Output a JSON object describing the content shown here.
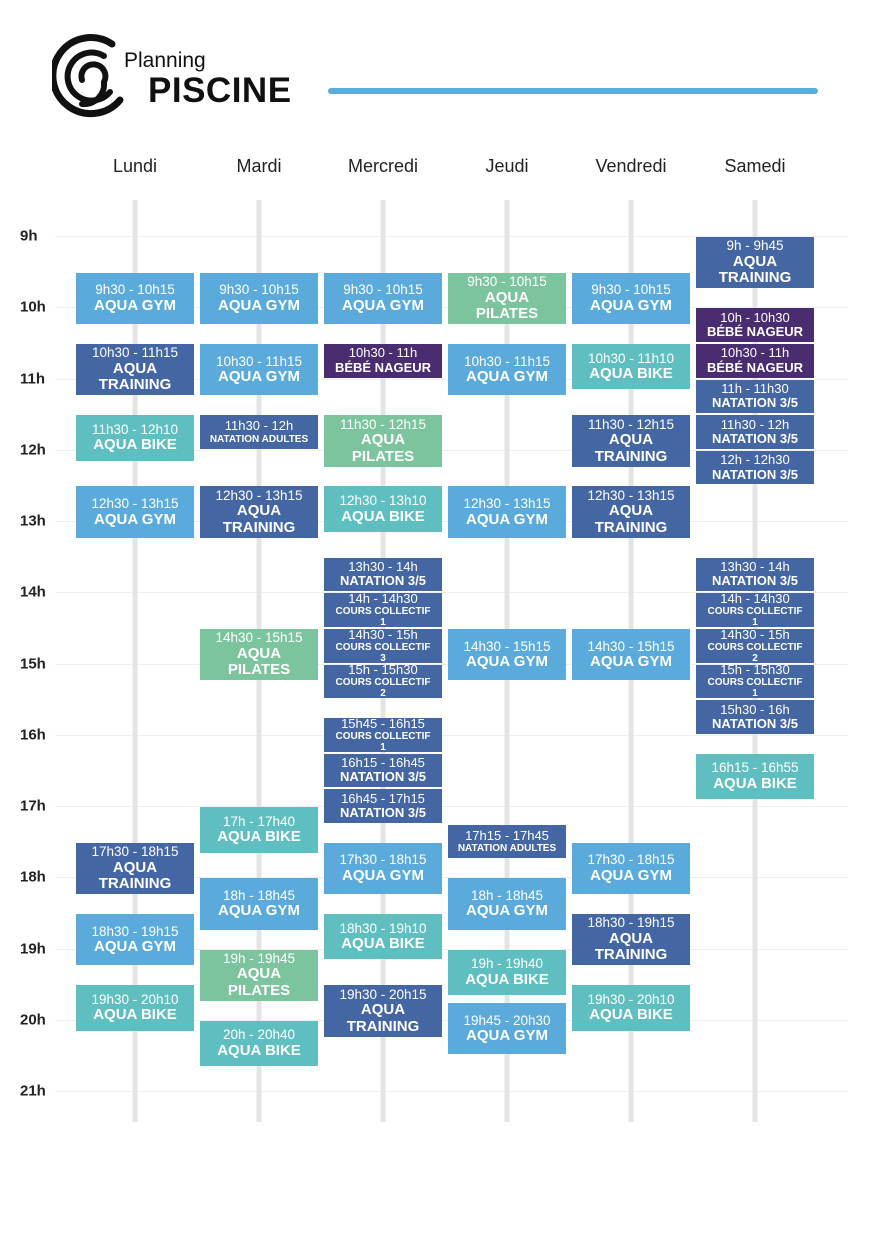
{
  "header": {
    "subtitle": "Planning",
    "title": "PISCINE"
  },
  "hours": [
    "9h",
    "10h",
    "11h",
    "12h",
    "13h",
    "14h",
    "15h",
    "16h",
    "17h",
    "18h",
    "19h",
    "20h",
    "21h"
  ],
  "days": [
    {
      "name": "Lundi",
      "events": [
        {
          "time": "9h30 - 10h15",
          "title": "AQUA GYM",
          "color": "#5aabdb"
        },
        {
          "time": "10h30 - 11h15",
          "title": "AQUA TRAINING",
          "color": "#4466a3"
        },
        {
          "time": "11h30 - 12h10",
          "title": "AQUA BIKE",
          "color": "#5fbfc0"
        },
        {
          "time": "12h30 - 13h15",
          "title": "AQUA GYM",
          "color": "#5aabdb"
        },
        {
          "time": "17h30 - 18h15",
          "title": "AQUA TRAINING",
          "color": "#4466a3"
        },
        {
          "time": "18h30 - 19h15",
          "title": "AQUA GYM",
          "color": "#5aabdb"
        },
        {
          "time": "19h30 - 20h10",
          "title": "AQUA BIKE",
          "color": "#5fbfc0"
        }
      ]
    },
    {
      "name": "Mardi",
      "events": [
        {
          "time": "9h30 - 10h15",
          "title": "AQUA GYM",
          "color": "#5aabdb"
        },
        {
          "time": "10h30 - 11h15",
          "title": "AQUA GYM",
          "color": "#5aabdb"
        },
        {
          "time": "11h30 - 12h",
          "title": "NATATION ADULTES",
          "color": "#4466a3"
        },
        {
          "time": "12h30 - 13h15",
          "title": "AQUA TRAINING",
          "color": "#4466a3"
        },
        {
          "time": "14h30 - 15h15",
          "title": "AQUA PILATES",
          "color": "#7cc49e"
        },
        {
          "time": "17h - 17h40",
          "title": "AQUA BIKE",
          "color": "#5fbfc0"
        },
        {
          "time": "18h - 18h45",
          "title": "AQUA GYM",
          "color": "#5aabdb"
        },
        {
          "time": "19h - 19h45",
          "title": "AQUA PILATES",
          "color": "#7cc49e"
        },
        {
          "time": "20h - 20h40",
          "title": "AQUA BIKE",
          "color": "#5fbfc0"
        }
      ]
    },
    {
      "name": "Mercredi",
      "events": [
        {
          "time": "9h30 - 10h15",
          "title": "AQUA GYM",
          "color": "#5aabdb"
        },
        {
          "time": "10h30 - 11h",
          "title": "BÉBÉ NAGEUR",
          "color": "#4a2d70"
        },
        {
          "time": "11h30 - 12h15",
          "title": "AQUA PILATES",
          "color": "#7cc49e"
        },
        {
          "time": "12h30 - 13h10",
          "title": "AQUA BIKE",
          "color": "#5fbfc0"
        },
        {
          "time": "13h30 - 14h",
          "title": "NATATION 3/5",
          "color": "#4466a3"
        },
        {
          "time": "14h - 14h30",
          "title": "COURS COLLECTIF 1",
          "color": "#4466a3"
        },
        {
          "time": "14h30 - 15h",
          "title": "COURS COLLECTIF 3",
          "color": "#4466a3"
        },
        {
          "time": "15h - 15h30",
          "title": "COURS COLLECTIF 2",
          "color": "#4466a3"
        },
        {
          "time": "15h45 - 16h15",
          "title": "COURS COLLECTIF 1",
          "color": "#4466a3"
        },
        {
          "time": "16h15 - 16h45",
          "title": "NATATION 3/5",
          "color": "#4466a3"
        },
        {
          "time": "16h45 - 17h15",
          "title": "NATATION 3/5",
          "color": "#4466a3"
        },
        {
          "time": "17h30 - 18h15",
          "title": "AQUA GYM",
          "color": "#5aabdb"
        },
        {
          "time": "18h30 - 19h10",
          "title": "AQUA BIKE",
          "color": "#5fbfc0"
        },
        {
          "time": "19h30 - 20h15",
          "title": "AQUA TRAINING",
          "color": "#4466a3"
        }
      ]
    },
    {
      "name": "Jeudi",
      "events": [
        {
          "time": "9h30 - 10h15",
          "title": "AQUA PILATES",
          "color": "#7cc49e"
        },
        {
          "time": "10h30 - 11h15",
          "title": "AQUA GYM",
          "color": "#5aabdb"
        },
        {
          "time": "12h30 - 13h15",
          "title": "AQUA GYM",
          "color": "#5aabdb"
        },
        {
          "time": "14h30 - 15h15",
          "title": "AQUA GYM",
          "color": "#5aabdb"
        },
        {
          "time": "17h15 - 17h45",
          "title": "NATATION ADULTES",
          "color": "#4466a3"
        },
        {
          "time": "18h - 18h45",
          "title": "AQUA GYM",
          "color": "#5aabdb"
        },
        {
          "time": "19h - 19h40",
          "title": "AQUA BIKE",
          "color": "#5fbfc0"
        },
        {
          "time": "19h45 - 20h30",
          "title": "AQUA GYM",
          "color": "#5aabdb"
        }
      ]
    },
    {
      "name": "Vendredi",
      "events": [
        {
          "time": "9h30 - 10h15",
          "title": "AQUA GYM",
          "color": "#5aabdb"
        },
        {
          "time": "10h30 - 11h10",
          "title": "AQUA BIKE",
          "color": "#5fbfc0"
        },
        {
          "time": "11h30 - 12h15",
          "title": "AQUA TRAINING",
          "color": "#4466a3"
        },
        {
          "time": "12h30 - 13h15",
          "title": "AQUA TRAINING",
          "color": "#4466a3"
        },
        {
          "time": "14h30 - 15h15",
          "title": "AQUA GYM",
          "color": "#5aabdb"
        },
        {
          "time": "17h30 - 18h15",
          "title": "AQUA GYM",
          "color": "#5aabdb"
        },
        {
          "time": "18h30 - 19h15",
          "title": "AQUA TRAINING",
          "color": "#4466a3"
        },
        {
          "time": "19h30 - 20h10",
          "title": "AQUA BIKE",
          "color": "#5fbfc0"
        }
      ]
    },
    {
      "name": "Samedi",
      "events": [
        {
          "time": "9h - 9h45",
          "title": "AQUA TRAINING",
          "color": "#4466a3"
        },
        {
          "time": "10h - 10h30",
          "title": "BÉBÉ NAGEUR",
          "color": "#4a2d70"
        },
        {
          "time": "10h30 - 11h",
          "title": "BÉBÉ NAGEUR",
          "color": "#4a2d70"
        },
        {
          "time": "11h - 11h30",
          "title": "NATATION 3/5",
          "color": "#4466a3"
        },
        {
          "time": "11h30 - 12h",
          "title": "NATATION 3/5",
          "color": "#4466a3"
        },
        {
          "time": "12h - 12h30",
          "title": "NATATION 3/5",
          "color": "#4466a3"
        },
        {
          "time": "13h30 - 14h",
          "title": "NATATION 3/5",
          "color": "#4466a3"
        },
        {
          "time": "14h - 14h30",
          "title": "COURS COLLECTIF 1",
          "color": "#4466a3"
        },
        {
          "time": "14h30 - 15h",
          "title": "COURS COLLECTIF 2",
          "color": "#4466a3"
        },
        {
          "time": "15h - 15h30",
          "title": "COURS COLLECTIF 1",
          "color": "#4466a3"
        },
        {
          "time": "15h30 - 16h",
          "title": "NATATION 3/5",
          "color": "#4466a3"
        },
        {
          "time": "16h15 - 16h55",
          "title": "AQUA BIKE",
          "color": "#5fbfc0"
        }
      ]
    }
  ]
}
